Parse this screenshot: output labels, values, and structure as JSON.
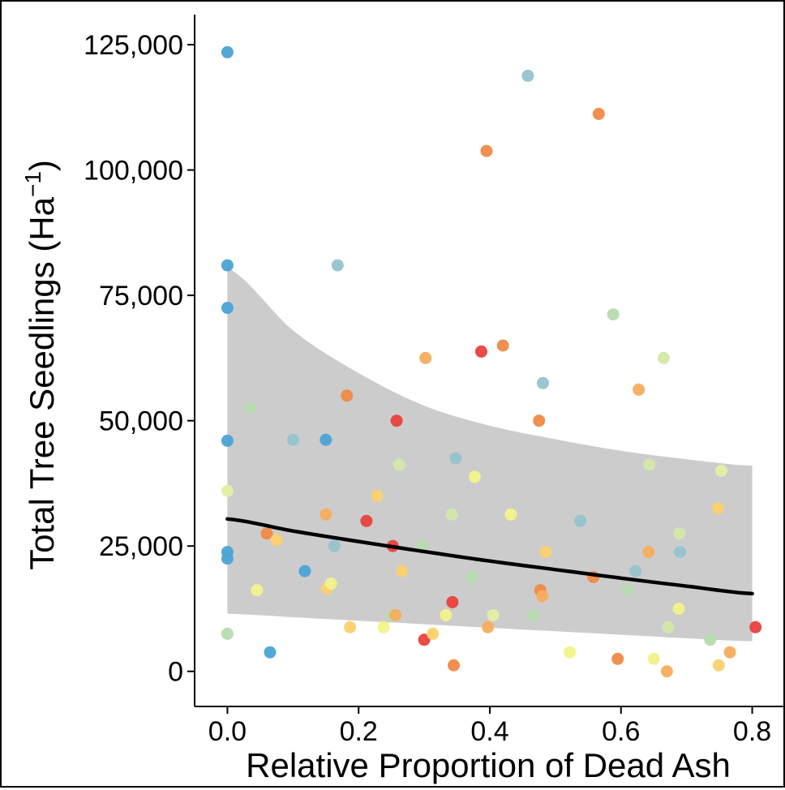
{
  "chart_data": {
    "type": "scatter",
    "title": "",
    "xlabel": "Relative Proportion of Dead Ash",
    "ylabel": "Total Tree Seedlings (Ha",
    "ylabel_sup": "−1",
    "ylabel_close": ")",
    "xlim": [
      -0.05,
      0.85
    ],
    "ylim": [
      -7000,
      131000
    ],
    "x_ticks": [
      0.0,
      0.2,
      0.4,
      0.6,
      0.8
    ],
    "x_tick_labels": [
      "0.0",
      "0.2",
      "0.4",
      "0.6",
      "0.8"
    ],
    "y_ticks": [
      0,
      25000,
      50000,
      75000,
      100000,
      125000
    ],
    "y_tick_labels": [
      "0",
      "25,000",
      "50,000",
      "75,000",
      "100,000",
      "125,000"
    ],
    "grid": false,
    "legend": "none",
    "fit": {
      "x": [
        0.0,
        0.1,
        0.2,
        0.3,
        0.4,
        0.5,
        0.6,
        0.7,
        0.8
      ],
      "y": [
        30400,
        28000,
        25900,
        23900,
        22000,
        20300,
        18600,
        17000,
        15500
      ],
      "lower": [
        11500,
        10800,
        10100,
        9400,
        8700,
        8000,
        7300,
        6600,
        6000
      ],
      "upper": [
        80500,
        68000,
        59500,
        53000,
        49000,
        46300,
        44000,
        42300,
        41000
      ],
      "line_color": "#000000",
      "band_color": "#cccccc"
    },
    "points": [
      {
        "x": 0.0,
        "y": 123500,
        "color": "#4ba3d6"
      },
      {
        "x": 0.0,
        "y": 81000,
        "color": "#4ba3d6"
      },
      {
        "x": 0.0,
        "y": 72500,
        "color": "#4ba3d6"
      },
      {
        "x": 0.0,
        "y": 46000,
        "color": "#4ba3d6"
      },
      {
        "x": 0.0,
        "y": 36000,
        "color": "#e3efa5"
      },
      {
        "x": 0.0,
        "y": 23800,
        "color": "#4ba3d6"
      },
      {
        "x": 0.0,
        "y": 22500,
        "color": "#4ba3d6"
      },
      {
        "x": 0.0,
        "y": 7500,
        "color": "#b7dbb0"
      },
      {
        "x": 0.035,
        "y": 52500,
        "color": "#b7dbb0"
      },
      {
        "x": 0.045,
        "y": 16200,
        "color": "#f2f28a"
      },
      {
        "x": 0.06,
        "y": 27500,
        "color": "#f08a47"
      },
      {
        "x": 0.065,
        "y": 3800,
        "color": "#4ba3d6"
      },
      {
        "x": 0.075,
        "y": 26200,
        "color": "#fbd06f"
      },
      {
        "x": 0.1,
        "y": 46200,
        "color": "#95c3cc"
      },
      {
        "x": 0.118,
        "y": 20000,
        "color": "#4ba3d6"
      },
      {
        "x": 0.15,
        "y": 46200,
        "color": "#4ba3d6"
      },
      {
        "x": 0.15,
        "y": 31300,
        "color": "#f7ad5c"
      },
      {
        "x": 0.152,
        "y": 16500,
        "color": "#fbd06f"
      },
      {
        "x": 0.158,
        "y": 17500,
        "color": "#f2f28a"
      },
      {
        "x": 0.163,
        "y": 25000,
        "color": "#95c3cc"
      },
      {
        "x": 0.168,
        "y": 81000,
        "color": "#95c3cc"
      },
      {
        "x": 0.182,
        "y": 55000,
        "color": "#f08a47"
      },
      {
        "x": 0.187,
        "y": 8800,
        "color": "#fbd06f"
      },
      {
        "x": 0.212,
        "y": 30000,
        "color": "#e8413c"
      },
      {
        "x": 0.228,
        "y": 35000,
        "color": "#fbd06f"
      },
      {
        "x": 0.238,
        "y": 8800,
        "color": "#f2f28a"
      },
      {
        "x": 0.25,
        "y": 11200,
        "color": "#b7dbb0"
      },
      {
        "x": 0.252,
        "y": 25000,
        "color": "#e8413c"
      },
      {
        "x": 0.256,
        "y": 11200,
        "color": "#f7ad5c"
      },
      {
        "x": 0.258,
        "y": 50000,
        "color": "#e8413c"
      },
      {
        "x": 0.262,
        "y": 41200,
        "color": "#d4e8a8"
      },
      {
        "x": 0.266,
        "y": 20000,
        "color": "#fbd06f"
      },
      {
        "x": 0.295,
        "y": 25000,
        "color": "#b7dbb0"
      },
      {
        "x": 0.3,
        "y": 6300,
        "color": "#e8413c"
      },
      {
        "x": 0.302,
        "y": 62500,
        "color": "#f7ad5c"
      },
      {
        "x": 0.313,
        "y": 7500,
        "color": "#fbd06f"
      },
      {
        "x": 0.333,
        "y": 11200,
        "color": "#f2f28a"
      },
      {
        "x": 0.342,
        "y": 31300,
        "color": "#d4e8a8"
      },
      {
        "x": 0.343,
        "y": 13800,
        "color": "#e8413c"
      },
      {
        "x": 0.345,
        "y": 1200,
        "color": "#f08a47"
      },
      {
        "x": 0.348,
        "y": 42500,
        "color": "#95c3cc"
      },
      {
        "x": 0.372,
        "y": 18800,
        "color": "#b7dbb0"
      },
      {
        "x": 0.377,
        "y": 38800,
        "color": "#f2f28a"
      },
      {
        "x": 0.387,
        "y": 63800,
        "color": "#e8413c"
      },
      {
        "x": 0.395,
        "y": 103800,
        "color": "#f08a47"
      },
      {
        "x": 0.397,
        "y": 8800,
        "color": "#f7ad5c"
      },
      {
        "x": 0.405,
        "y": 11200,
        "color": "#e3efa5"
      },
      {
        "x": 0.42,
        "y": 65000,
        "color": "#f08a47"
      },
      {
        "x": 0.432,
        "y": 31300,
        "color": "#f2f28a"
      },
      {
        "x": 0.458,
        "y": 118800,
        "color": "#95c3cc"
      },
      {
        "x": 0.465,
        "y": 11200,
        "color": "#b7dbb0"
      },
      {
        "x": 0.475,
        "y": 50000,
        "color": "#f08a47"
      },
      {
        "x": 0.477,
        "y": 16200,
        "color": "#f08a47"
      },
      {
        "x": 0.48,
        "y": 15000,
        "color": "#f7ad5c"
      },
      {
        "x": 0.481,
        "y": 57500,
        "color": "#95c3cc"
      },
      {
        "x": 0.485,
        "y": 23800,
        "color": "#fbd06f"
      },
      {
        "x": 0.522,
        "y": 3800,
        "color": "#f2f28a"
      },
      {
        "x": 0.538,
        "y": 30000,
        "color": "#95c3cc"
      },
      {
        "x": 0.558,
        "y": 18800,
        "color": "#f08a47"
      },
      {
        "x": 0.566,
        "y": 111200,
        "color": "#f08a47"
      },
      {
        "x": 0.588,
        "y": 71200,
        "color": "#b7dbb0"
      },
      {
        "x": 0.595,
        "y": 2500,
        "color": "#f08a47"
      },
      {
        "x": 0.61,
        "y": 16200,
        "color": "#b7dbb0"
      },
      {
        "x": 0.622,
        "y": 20000,
        "color": "#95c3cc"
      },
      {
        "x": 0.627,
        "y": 56200,
        "color": "#f7ad5c"
      },
      {
        "x": 0.642,
        "y": 23800,
        "color": "#f7ad5c"
      },
      {
        "x": 0.643,
        "y": 41200,
        "color": "#d4e8a8"
      },
      {
        "x": 0.65,
        "y": 2500,
        "color": "#f2f28a"
      },
      {
        "x": 0.665,
        "y": 62500,
        "color": "#d4e8a8"
      },
      {
        "x": 0.67,
        "y": 0,
        "color": "#f7ad5c"
      },
      {
        "x": 0.672,
        "y": 8800,
        "color": "#d4e8a8"
      },
      {
        "x": 0.688,
        "y": 12500,
        "color": "#f2f28a"
      },
      {
        "x": 0.689,
        "y": 27500,
        "color": "#d4e8a8"
      },
      {
        "x": 0.69,
        "y": 23800,
        "color": "#95c3cc"
      },
      {
        "x": 0.736,
        "y": 6300,
        "color": "#b7dbb0"
      },
      {
        "x": 0.748,
        "y": 32500,
        "color": "#fbd06f"
      },
      {
        "x": 0.749,
        "y": 1200,
        "color": "#fbd06f"
      },
      {
        "x": 0.753,
        "y": 40000,
        "color": "#e3efa5"
      },
      {
        "x": 0.766,
        "y": 3800,
        "color": "#f7ad5c"
      },
      {
        "x": 0.805,
        "y": 8800,
        "color": "#e8413c"
      }
    ]
  }
}
